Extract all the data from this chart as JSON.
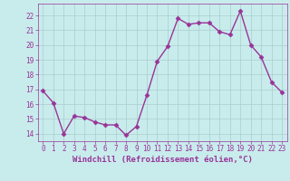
{
  "x": [
    0,
    1,
    2,
    3,
    4,
    5,
    6,
    7,
    8,
    9,
    10,
    11,
    12,
    13,
    14,
    15,
    16,
    17,
    18,
    19,
    20,
    21,
    22,
    23
  ],
  "y": [
    16.9,
    16.1,
    14.0,
    15.2,
    15.1,
    14.8,
    14.6,
    14.6,
    13.9,
    14.5,
    16.6,
    18.9,
    19.9,
    21.8,
    21.4,
    21.5,
    21.5,
    20.9,
    20.7,
    22.3,
    20.0,
    19.2,
    17.5,
    16.8
  ],
  "line_color": "#993399",
  "marker": "D",
  "markersize": 2.5,
  "linewidth": 1.0,
  "background_color": "#c8ecec",
  "grid_color": "#aacccc",
  "xlabel": "Windchill (Refroidissement éolien,°C)",
  "xlabel_fontsize": 6.5,
  "tick_fontsize": 5.5,
  "ylim": [
    13.5,
    22.8
  ],
  "yticks": [
    14,
    15,
    16,
    17,
    18,
    19,
    20,
    21,
    22
  ],
  "xticks": [
    0,
    1,
    2,
    3,
    4,
    5,
    6,
    7,
    8,
    9,
    10,
    11,
    12,
    13,
    14,
    15,
    16,
    17,
    18,
    19,
    20,
    21,
    22,
    23
  ],
  "xlim": [
    -0.5,
    23.5
  ]
}
